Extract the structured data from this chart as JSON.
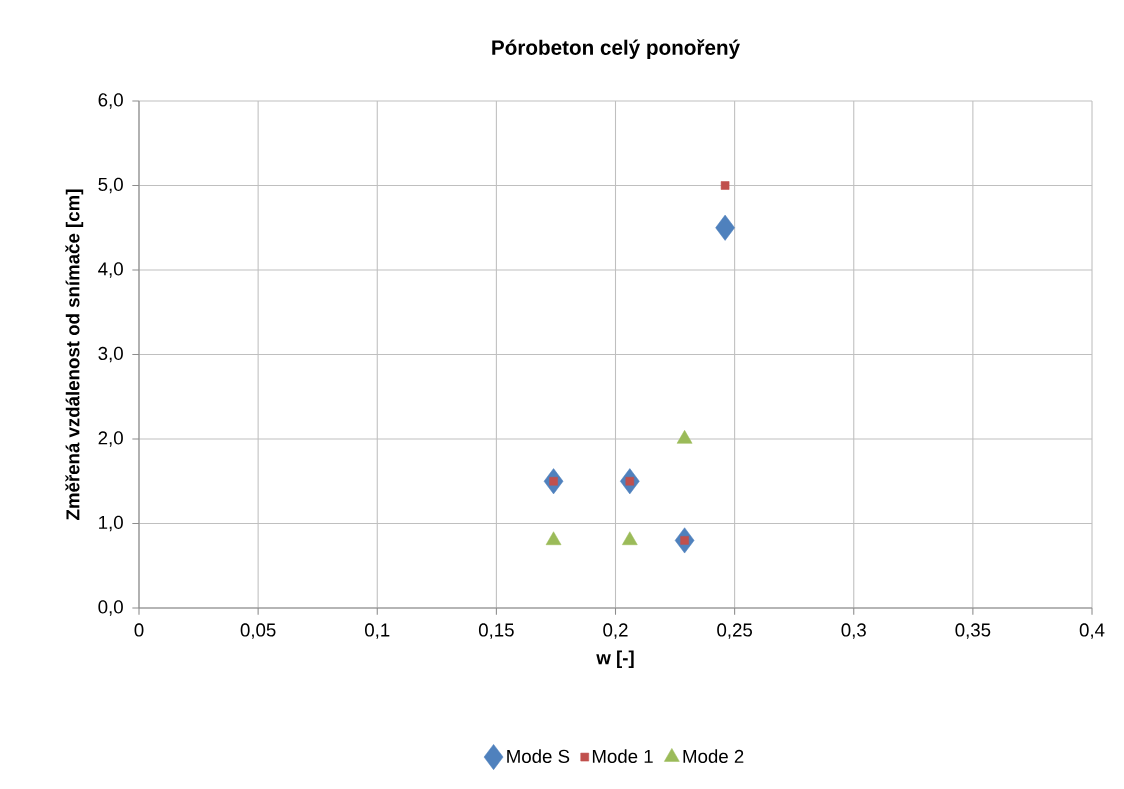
{
  "chart_data": {
    "type": "scatter",
    "title": "Pórobeton celý ponořený",
    "xlabel": "w [-]",
    "ylabel": "Změřená vzdálenost od snímače [cm]",
    "xlim": [
      0,
      0.4
    ],
    "ylim": [
      0,
      6
    ],
    "xticks": [
      0,
      {
        "value": 0.05,
        "label": "0,05"
      },
      {
        "value": 0.1,
        "label": "0,1"
      },
      {
        "value": 0.15,
        "label": "0,15"
      },
      {
        "value": 0.2,
        "label": "0,2"
      },
      {
        "value": 0.25,
        "label": "0,25"
      },
      {
        "value": 0.3,
        "label": "0,3"
      },
      {
        "value": 0.35,
        "label": "0,35"
      },
      {
        "value": 0.4,
        "label": "0,4"
      }
    ],
    "yticks": [
      {
        "value": 0,
        "label": "0,0"
      },
      {
        "value": 1,
        "label": "1,0"
      },
      {
        "value": 2,
        "label": "2,0"
      },
      {
        "value": 3,
        "label": "3,0"
      },
      {
        "value": 4,
        "label": "4,0"
      },
      {
        "value": 5,
        "label": "5,0"
      },
      {
        "value": 6,
        "label": "6,0"
      }
    ],
    "grid": true,
    "legend": "bottom",
    "series": [
      {
        "name": "Mode S",
        "color": "#4f81bd",
        "marker": "diamond",
        "x": [
          0.174,
          0.206,
          0.229,
          0.246
        ],
        "values": [
          1.5,
          1.5,
          0.8,
          4.5
        ]
      },
      {
        "name": "Mode 1",
        "color": "#c0504d",
        "marker": "square",
        "x": [
          0.174,
          0.206,
          0.229,
          0.246
        ],
        "values": [
          1.5,
          1.5,
          0.8,
          5.0
        ]
      },
      {
        "name": "Mode 2",
        "color": "#9bbb59",
        "marker": "triangle",
        "x": [
          0.174,
          0.206,
          0.229
        ],
        "values": [
          0.8,
          0.8,
          2.0
        ]
      }
    ]
  }
}
